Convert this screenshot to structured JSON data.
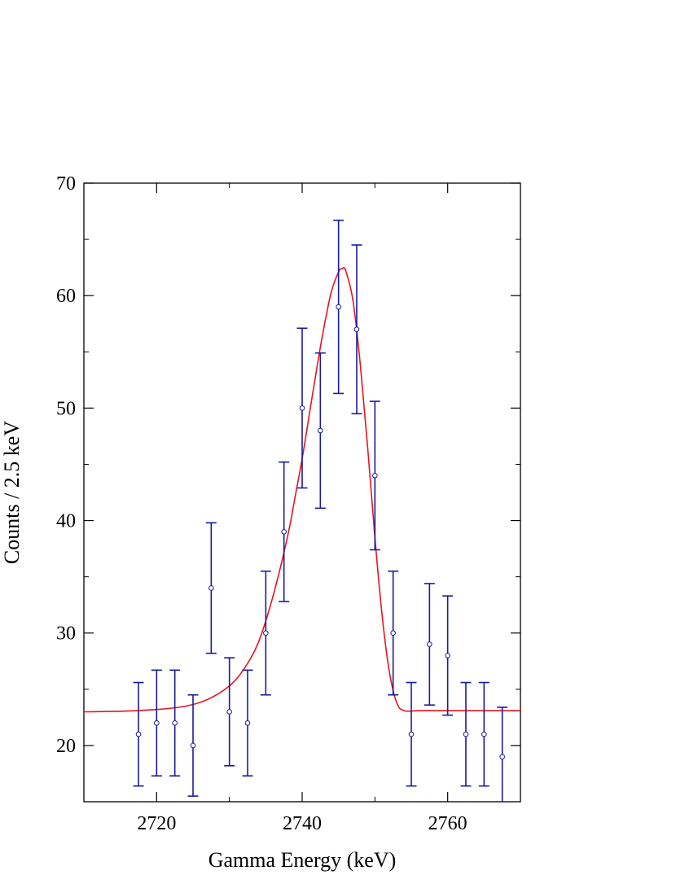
{
  "chart_data": {
    "type": "scatter",
    "xlabel": "Gamma Energy (keV)",
    "ylabel": "Counts / 2.5 keV",
    "xlim": [
      2710,
      2770
    ],
    "ylim": [
      15,
      70
    ],
    "xticks": [
      2720,
      2740,
      2760
    ],
    "yticks": [
      20,
      30,
      40,
      50,
      60,
      70
    ],
    "grid": false,
    "legend": "none",
    "series": [
      {
        "kind": "points_with_errorbars",
        "color": "#1a1aa0",
        "x": [
          2717.5,
          2720,
          2722.5,
          2725,
          2727.5,
          2730,
          2732.5,
          2735,
          2737.5,
          2740,
          2742.5,
          2745,
          2747.5,
          2750,
          2752.5,
          2755,
          2757.5,
          2760,
          2762.5,
          2765,
          2767.5
        ],
        "y": [
          21,
          22,
          22,
          20,
          34,
          23,
          22,
          30,
          39,
          50,
          48,
          59,
          57,
          44,
          30,
          21,
          29,
          28,
          21,
          21,
          19
        ],
        "y_low": [
          16.4,
          17.3,
          17.3,
          15.5,
          28.2,
          18.2,
          17.3,
          24.5,
          32.8,
          42.9,
          41.1,
          51.3,
          49.5,
          37.4,
          24.5,
          16.4,
          23.6,
          22.7,
          16.4,
          16.4,
          14.6
        ],
        "y_high": [
          25.6,
          26.7,
          26.7,
          24.5,
          39.8,
          27.8,
          26.7,
          35.5,
          45.2,
          57.1,
          54.9,
          66.7,
          64.5,
          50.6,
          35.5,
          25.6,
          34.4,
          33.3,
          25.6,
          25.6,
          23.4
        ]
      },
      {
        "kind": "fit_curve",
        "color": "#e8141e",
        "x": [
          2710,
          2715,
          2720,
          2724,
          2727,
          2730,
          2732,
          2734,
          2736,
          2738,
          2739,
          2740,
          2741,
          2742,
          2743,
          2744,
          2745,
          2745.5,
          2746,
          2747,
          2748,
          2749,
          2750,
          2751,
          2752,
          2753,
          2754,
          2756,
          2760,
          2770
        ],
        "y": [
          23.0,
          23.05,
          23.2,
          23.5,
          24.1,
          25.3,
          26.8,
          29.2,
          33.3,
          38.6,
          42.0,
          45.5,
          49.5,
          53.5,
          57.2,
          60.3,
          62.1,
          62.4,
          62.2,
          59.5,
          53.8,
          46.5,
          38.5,
          31.5,
          26.5,
          23.8,
          23.1,
          23.1,
          23.1,
          23.1
        ]
      }
    ]
  }
}
